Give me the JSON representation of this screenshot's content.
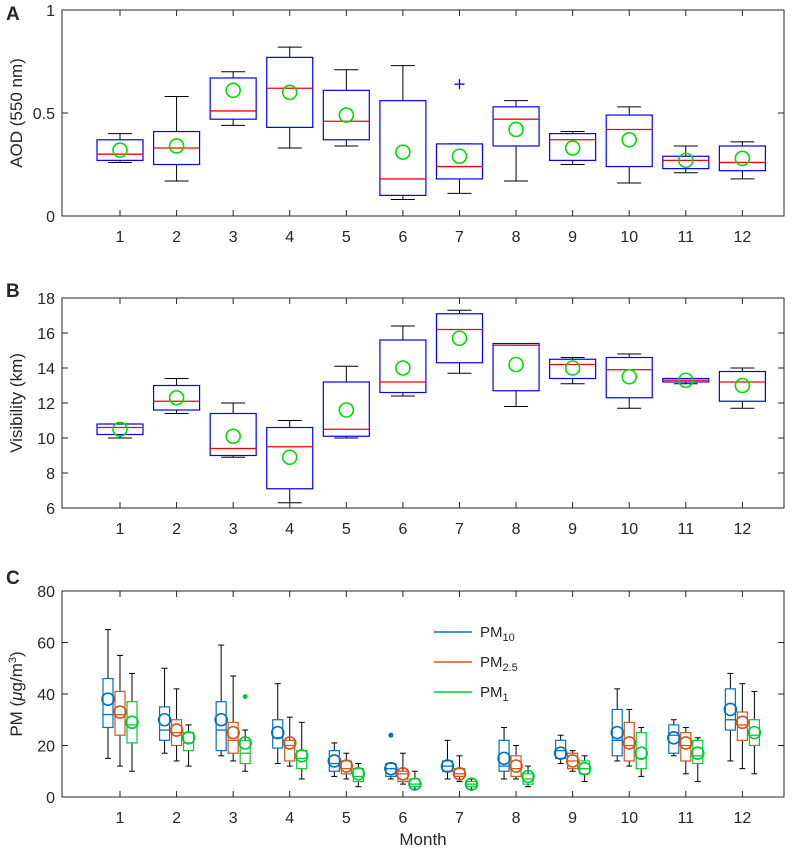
{
  "chart_data": [
    {
      "panel_label": "A",
      "type": "box",
      "ylabel": "AOD (550 nm)",
      "xlabel": "",
      "ylim": [
        0,
        1
      ],
      "yticks": [
        0,
        0.5,
        1
      ],
      "ytick_labels": [
        "0",
        "0.5",
        "1"
      ],
      "categories": [
        "1",
        "2",
        "3",
        "4",
        "5",
        "6",
        "7",
        "8",
        "9",
        "10",
        "11",
        "12"
      ],
      "box_color": "#0000FF",
      "median_color": "#FF0000",
      "mean_color": "#00DD00",
      "boxes": [
        {
          "wl": 0.26,
          "q1": 0.27,
          "med": 0.3,
          "q3": 0.37,
          "wh": 0.4,
          "mean": 0.32
        },
        {
          "wl": 0.17,
          "q1": 0.25,
          "med": 0.33,
          "q3": 0.41,
          "wh": 0.58,
          "mean": 0.34
        },
        {
          "wl": 0.44,
          "q1": 0.47,
          "med": 0.51,
          "q3": 0.67,
          "wh": 0.7,
          "mean": 0.61
        },
        {
          "wl": 0.33,
          "q1": 0.43,
          "med": 0.62,
          "q3": 0.77,
          "wh": 0.82,
          "mean": 0.6
        },
        {
          "wl": 0.34,
          "q1": 0.37,
          "med": 0.46,
          "q3": 0.61,
          "wh": 0.71,
          "mean": 0.49
        },
        {
          "wl": 0.08,
          "q1": 0.1,
          "med": 0.18,
          "q3": 0.56,
          "wh": 0.73,
          "mean": 0.31
        },
        {
          "wl": 0.11,
          "q1": 0.18,
          "med": 0.24,
          "q3": 0.35,
          "wh": 0.35,
          "mean": 0.29,
          "outliers": [
            0.64
          ]
        },
        {
          "wl": 0.17,
          "q1": 0.34,
          "med": 0.47,
          "q3": 0.53,
          "wh": 0.56,
          "mean": 0.42
        },
        {
          "wl": 0.25,
          "q1": 0.27,
          "med": 0.37,
          "q3": 0.4,
          "wh": 0.41,
          "mean": 0.33
        },
        {
          "wl": 0.16,
          "q1": 0.24,
          "med": 0.42,
          "q3": 0.49,
          "wh": 0.53,
          "mean": 0.37
        },
        {
          "wl": 0.21,
          "q1": 0.23,
          "med": 0.27,
          "q3": 0.29,
          "wh": 0.34,
          "mean": 0.27
        },
        {
          "wl": 0.18,
          "q1": 0.22,
          "med": 0.26,
          "q3": 0.34,
          "wh": 0.36,
          "mean": 0.28
        }
      ]
    },
    {
      "panel_label": "B",
      "type": "box",
      "ylabel": "Visibility (km)",
      "xlabel": "",
      "ylim": [
        6,
        18
      ],
      "yticks": [
        6,
        8,
        10,
        12,
        14,
        16,
        18
      ],
      "ytick_labels": [
        "6",
        "8",
        "10",
        "12",
        "14",
        "16",
        "18"
      ],
      "categories": [
        "1",
        "2",
        "3",
        "4",
        "5",
        "6",
        "7",
        "8",
        "9",
        "10",
        "11",
        "12"
      ],
      "box_color": "#0000FF",
      "median_color": "#FF0000",
      "mean_color": "#00DD00",
      "boxes": [
        {
          "wl": 10.0,
          "q1": 10.2,
          "med": 10.6,
          "q3": 10.8,
          "wh": 10.8,
          "mean": 10.5
        },
        {
          "wl": 11.4,
          "q1": 11.6,
          "med": 12.1,
          "q3": 13.0,
          "wh": 13.4,
          "mean": 12.3
        },
        {
          "wl": 8.9,
          "q1": 9.0,
          "med": 9.4,
          "q3": 11.4,
          "wh": 12.0,
          "mean": 10.1
        },
        {
          "wl": 6.3,
          "q1": 7.1,
          "med": 9.5,
          "q3": 10.6,
          "wh": 11.0,
          "mean": 8.9
        },
        {
          "wl": 10.0,
          "q1": 10.1,
          "med": 10.5,
          "q3": 13.2,
          "wh": 14.1,
          "mean": 11.6
        },
        {
          "wl": 12.4,
          "q1": 12.6,
          "med": 13.2,
          "q3": 15.6,
          "wh": 16.4,
          "mean": 14.0
        },
        {
          "wl": 13.7,
          "q1": 14.3,
          "med": 16.2,
          "q3": 17.1,
          "wh": 17.3,
          "mean": 15.7
        },
        {
          "wl": 11.8,
          "q1": 12.7,
          "med": 15.3,
          "q3": 15.4,
          "wh": 15.4,
          "mean": 14.2
        },
        {
          "wl": 13.1,
          "q1": 13.4,
          "med": 14.2,
          "q3": 14.5,
          "wh": 14.6,
          "mean": 14.0
        },
        {
          "wl": 11.7,
          "q1": 12.3,
          "med": 13.9,
          "q3": 14.6,
          "wh": 14.8,
          "mean": 13.5
        },
        {
          "wl": 13.1,
          "q1": 13.2,
          "med": 13.3,
          "q3": 13.4,
          "wh": 13.4,
          "mean": 13.3
        },
        {
          "wl": 11.7,
          "q1": 12.1,
          "med": 13.2,
          "q3": 13.8,
          "wh": 14.0,
          "mean": 13.0
        }
      ]
    },
    {
      "panel_label": "C",
      "type": "box",
      "ylabel_main": "PM (",
      "ylabel_mu": "μ",
      "ylabel_unit": "g/m",
      "ylabel_exp": "3",
      "ylabel_close": ")",
      "xlabel": "Month",
      "ylim": [
        0,
        80
      ],
      "yticks": [
        0,
        20,
        40,
        60,
        80
      ],
      "ytick_labels": [
        "0",
        "20",
        "40",
        "60",
        "80"
      ],
      "categories": [
        "1",
        "2",
        "3",
        "4",
        "5",
        "6",
        "7",
        "8",
        "9",
        "10",
        "11",
        "12"
      ],
      "legend": [
        {
          "name": "PM",
          "sub": "10",
          "color": "#0072BD"
        },
        {
          "name": "PM",
          "sub": "2.5",
          "color": "#D95319"
        },
        {
          "name": "PM",
          "sub": "1",
          "color": "#00CC33"
        }
      ],
      "series": [
        {
          "name": "PM10",
          "color": "#0072BD",
          "boxes": [
            {
              "wl": 15,
              "q1": 27,
              "med": 32,
              "q3": 46,
              "wh": 65,
              "mean": 38
            },
            {
              "wl": 17,
              "q1": 22,
              "med": 26,
              "q3": 35,
              "wh": 50,
              "mean": 30
            },
            {
              "wl": 16,
              "q1": 18,
              "med": 26,
              "q3": 37,
              "wh": 59,
              "mean": 30
            },
            {
              "wl": 13,
              "q1": 19,
              "med": 23,
              "q3": 30,
              "wh": 44,
              "mean": 25
            },
            {
              "wl": 8,
              "q1": 10,
              "med": 13,
              "q3": 18,
              "wh": 21,
              "mean": 14
            },
            {
              "wl": 7,
              "q1": 8,
              "med": 11,
              "q3": 13,
              "wh": 13,
              "mean": 11,
              "outliers": [
                24
              ]
            },
            {
              "wl": 7,
              "q1": 10,
              "med": 12,
              "q3": 14,
              "wh": 22,
              "mean": 12
            },
            {
              "wl": 7,
              "q1": 10,
              "med": 12,
              "q3": 22,
              "wh": 27,
              "mean": 15
            },
            {
              "wl": 13,
              "q1": 15,
              "med": 18,
              "q3": 22,
              "wh": 24,
              "mean": 17
            },
            {
              "wl": 14,
              "q1": 16,
              "med": 22,
              "q3": 34,
              "wh": 42,
              "mean": 25
            },
            {
              "wl": 16,
              "q1": 17,
              "med": 24,
              "q3": 28,
              "wh": 30,
              "mean": 23
            },
            {
              "wl": 14,
              "q1": 26,
              "med": 30,
              "q3": 42,
              "wh": 48,
              "mean": 34
            }
          ]
        },
        {
          "name": "PM2.5",
          "color": "#D95319",
          "boxes": [
            {
              "wl": 12,
              "q1": 24,
              "med": 32,
              "q3": 41,
              "wh": 55,
              "mean": 33
            },
            {
              "wl": 14,
              "q1": 20,
              "med": 25,
              "q3": 30,
              "wh": 42,
              "mean": 26
            },
            {
              "wl": 14,
              "q1": 17,
              "med": 22,
              "q3": 29,
              "wh": 47,
              "mean": 25
            },
            {
              "wl": 12,
              "q1": 14,
              "med": 20,
              "q3": 22,
              "wh": 31,
              "mean": 21
            },
            {
              "wl": 7,
              "q1": 9,
              "med": 11,
              "q3": 14,
              "wh": 17,
              "mean": 12
            },
            {
              "wl": 5,
              "q1": 6,
              "med": 9,
              "q3": 10,
              "wh": 17,
              "mean": 9
            },
            {
              "wl": 6,
              "q1": 8,
              "med": 9,
              "q3": 11,
              "wh": 16,
              "mean": 9
            },
            {
              "wl": 7,
              "q1": 8,
              "med": 11,
              "q3": 16,
              "wh": 20,
              "mean": 12
            },
            {
              "wl": 10,
              "q1": 11,
              "med": 14,
              "q3": 17,
              "wh": 18,
              "mean": 14
            },
            {
              "wl": 12,
              "q1": 14,
              "med": 20,
              "q3": 29,
              "wh": 34,
              "mean": 21
            },
            {
              "wl": 9,
              "q1": 14,
              "med": 20,
              "q3": 25,
              "wh": 27,
              "mean": 21
            },
            {
              "wl": 11,
              "q1": 22,
              "med": 28,
              "q3": 33,
              "wh": 44,
              "mean": 29
            }
          ]
        },
        {
          "name": "PM1",
          "color": "#00CC33",
          "boxes": [
            {
              "wl": 10,
              "q1": 21,
              "med": 28,
              "q3": 37,
              "wh": 48,
              "mean": 29
            },
            {
              "wl": 12,
              "q1": 18,
              "med": 21,
              "q3": 25,
              "wh": 28,
              "mean": 23
            },
            {
              "wl": 10,
              "q1": 13,
              "med": 17,
              "q3": 22,
              "wh": 26,
              "mean": 21,
              "outliers": [
                39
              ]
            },
            {
              "wl": 7,
              "q1": 11,
              "med": 15,
              "q3": 18,
              "wh": 29,
              "mean": 16
            },
            {
              "wl": 4,
              "q1": 6,
              "med": 8,
              "q3": 11,
              "wh": 13,
              "mean": 9
            },
            {
              "wl": 3,
              "q1": 4,
              "med": 5,
              "q3": 7,
              "wh": 10,
              "mean": 5
            },
            {
              "wl": 3,
              "q1": 4,
              "med": 5,
              "q3": 6,
              "wh": 7,
              "mean": 5
            },
            {
              "wl": 4,
              "q1": 5,
              "med": 7,
              "q3": 9,
              "wh": 12,
              "mean": 8
            },
            {
              "wl": 6,
              "q1": 9,
              "med": 11,
              "q3": 14,
              "wh": 16,
              "mean": 11
            },
            {
              "wl": 8,
              "q1": 11,
              "med": 15,
              "q3": 25,
              "wh": 27,
              "mean": 17
            },
            {
              "wl": 6,
              "q1": 13,
              "med": 16,
              "q3": 22,
              "wh": 23,
              "mean": 17
            },
            {
              "wl": 9,
              "q1": 20,
              "med": 24,
              "q3": 30,
              "wh": 41,
              "mean": 25
            }
          ]
        }
      ]
    }
  ]
}
